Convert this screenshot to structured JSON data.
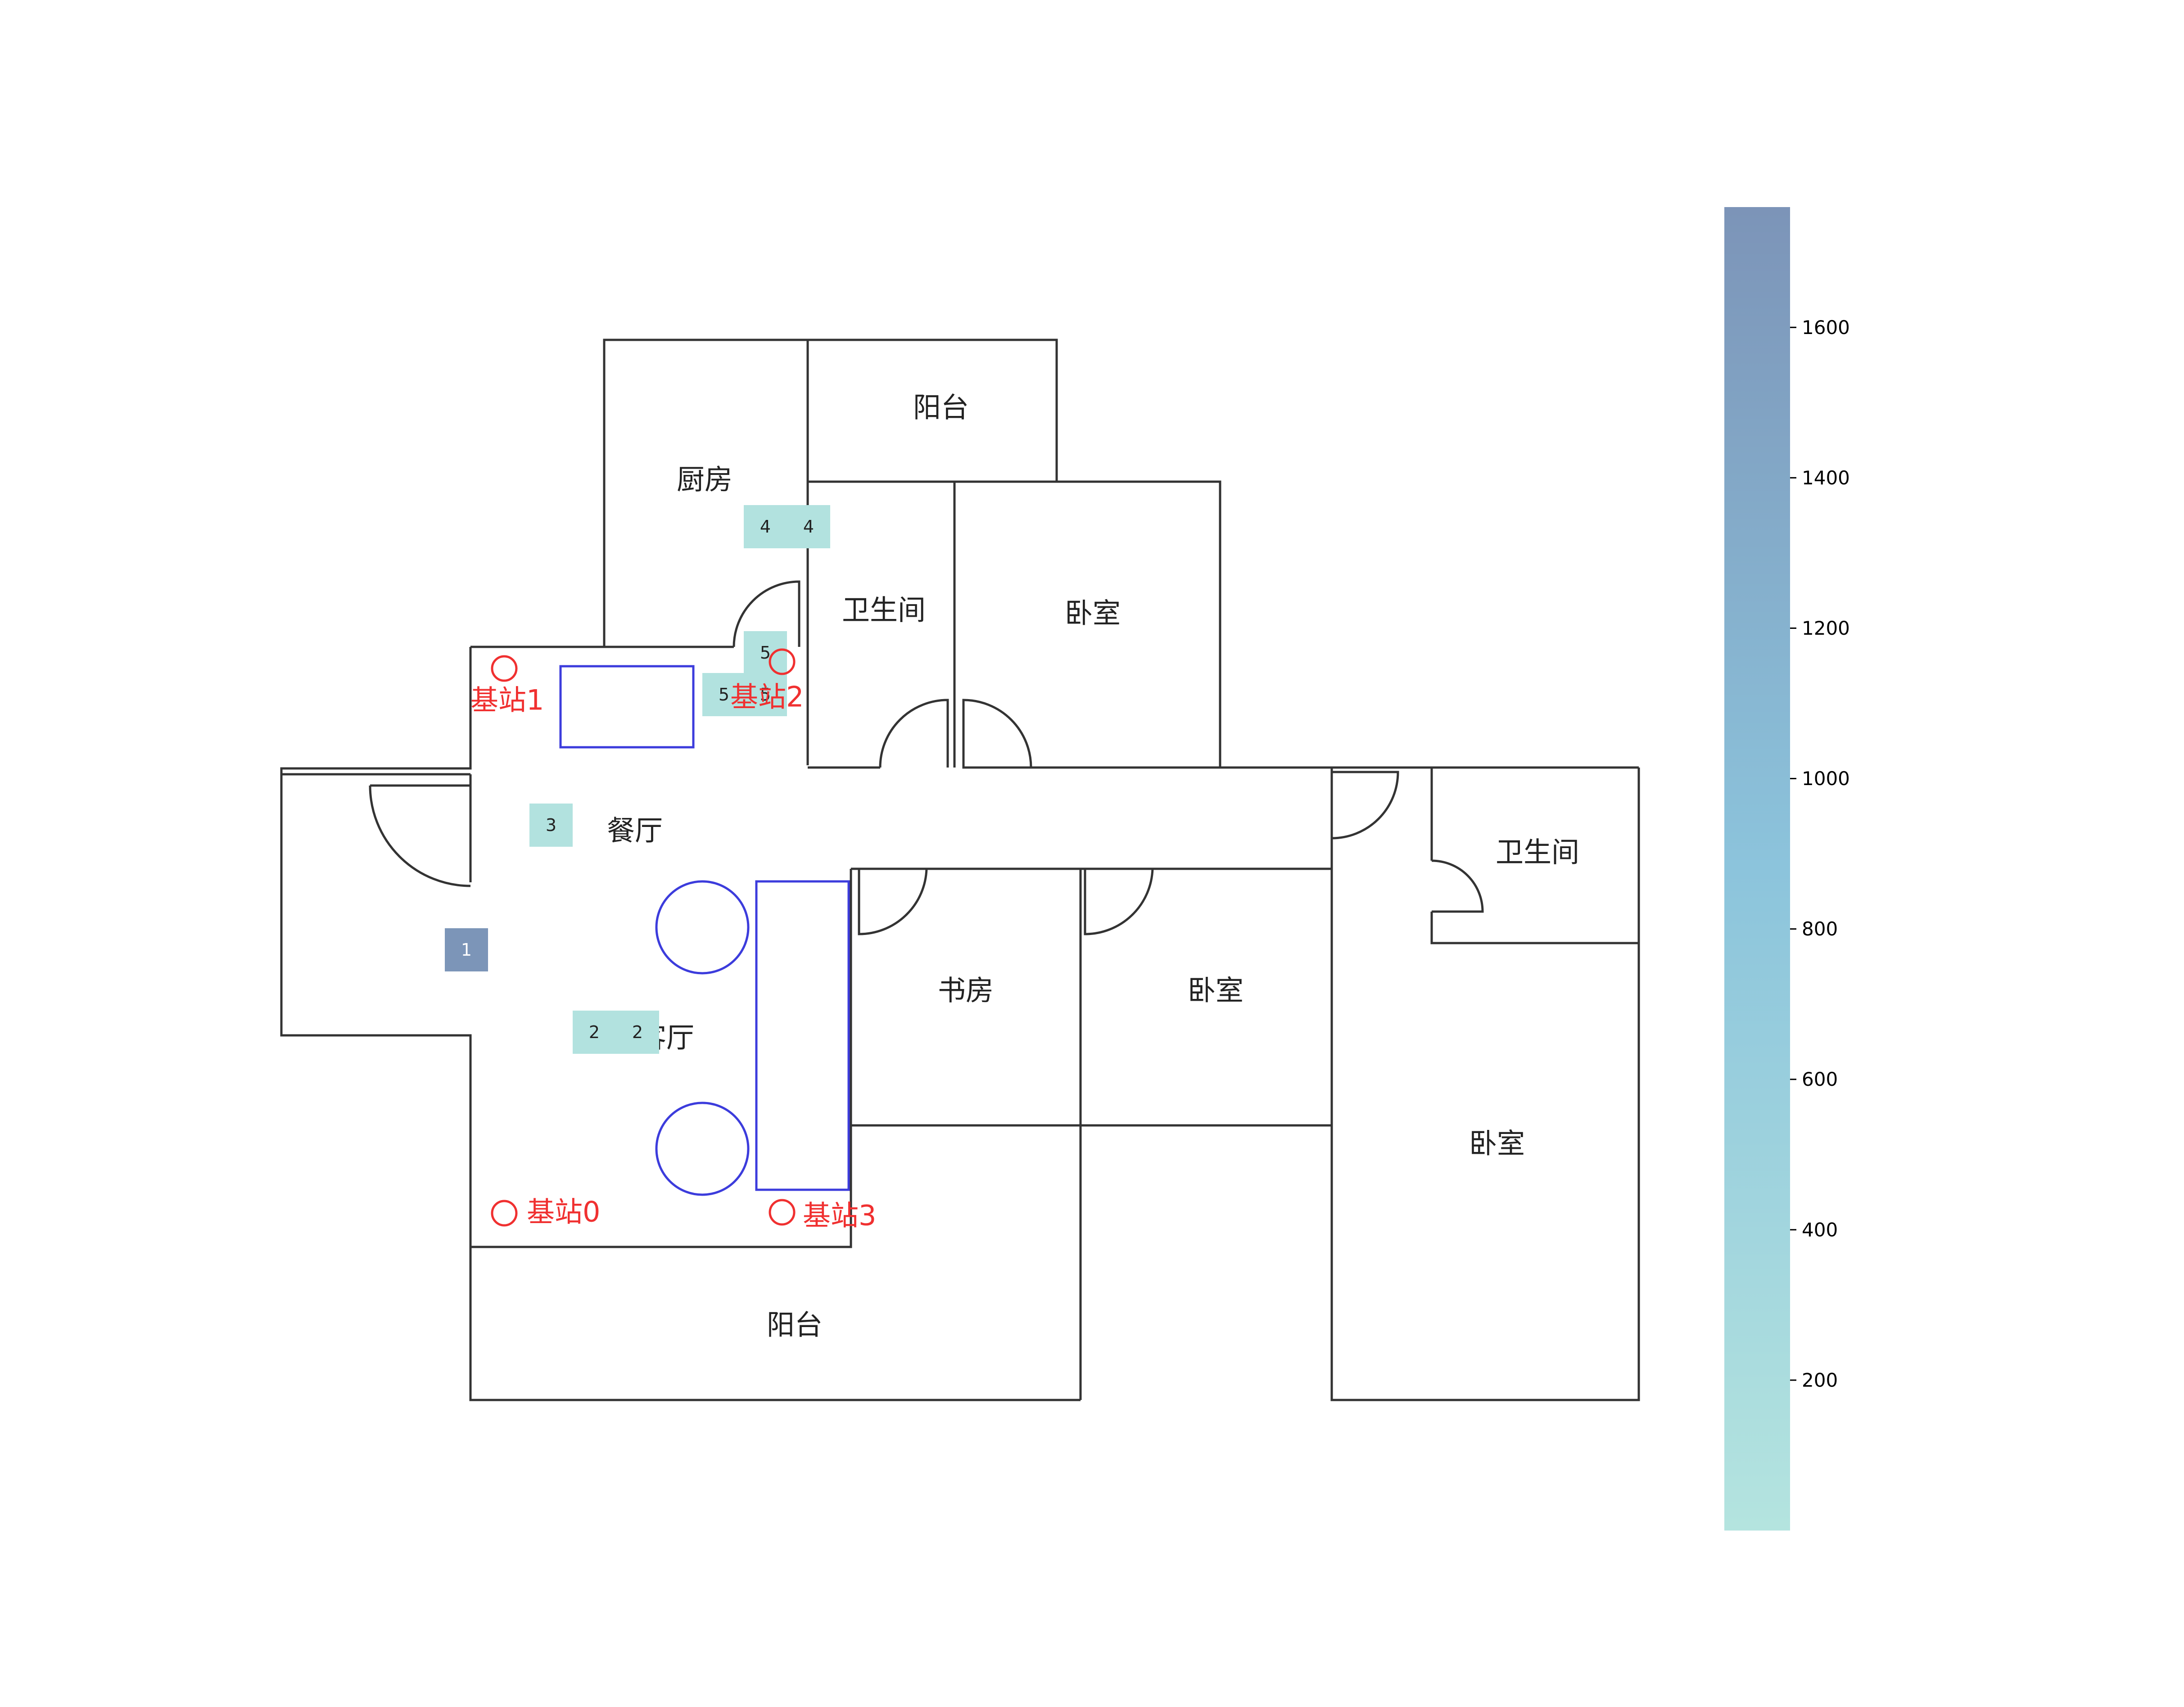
{
  "rooms": [
    {
      "id": "kitchen",
      "label": "厨房"
    },
    {
      "id": "balcony-north",
      "label": "阳台"
    },
    {
      "id": "bath-north",
      "label": "卫生间"
    },
    {
      "id": "bedroom-north",
      "label": "卧室"
    },
    {
      "id": "dining",
      "label": "餐厅"
    },
    {
      "id": "living",
      "label": "客厅"
    },
    {
      "id": "study",
      "label": "书房"
    },
    {
      "id": "bedroom-middle",
      "label": "卧室"
    },
    {
      "id": "bath-east",
      "label": "卫生间"
    },
    {
      "id": "bedroom-east",
      "label": "卧室"
    },
    {
      "id": "balcony-south",
      "label": "阳台"
    }
  ],
  "stations": [
    {
      "id": 0,
      "label": "基站0"
    },
    {
      "id": 1,
      "label": "基站1"
    },
    {
      "id": 2,
      "label": "基站2"
    },
    {
      "id": 3,
      "label": "基站3"
    }
  ],
  "cells": [
    {
      "label": "4",
      "value": 50
    },
    {
      "label": "4",
      "value": 50
    },
    {
      "label": "5",
      "value": 50
    },
    {
      "label": "5",
      "value": 50
    },
    {
      "label": "5",
      "value": 50
    },
    {
      "label": "3",
      "value": 50
    },
    {
      "label": "1",
      "value": 1750
    },
    {
      "label": "2",
      "value": 50
    },
    {
      "label": "2",
      "value": 50
    }
  ],
  "colorbar": {
    "min": 0,
    "max": 1760,
    "ticks": [
      1600,
      1400,
      1200,
      1000,
      800,
      600,
      400,
      200
    ],
    "colors": {
      "low": "#b4e4df",
      "mid": "#8cc4dc",
      "high": "#7c94b8"
    }
  },
  "colors": {
    "wall": "#333333",
    "furniture": "#3c3cdc",
    "station": "#f03030",
    "label_dark": "#222222",
    "label_light": "#ffffff"
  }
}
